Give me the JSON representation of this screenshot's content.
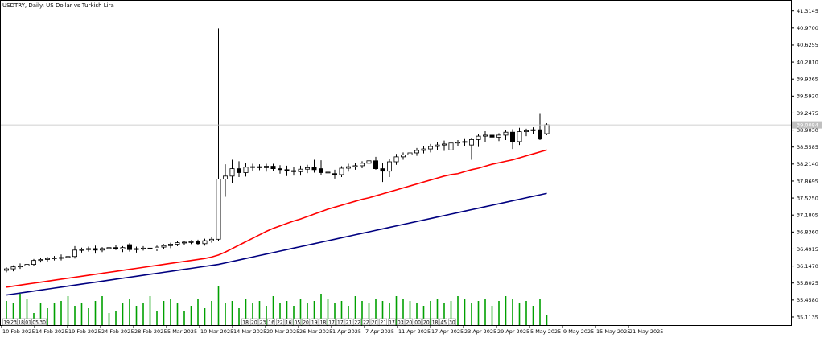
{
  "chart_data": {
    "type": "candlestick",
    "title": "USDTRY, Daily:  US Dollar vs Turkish Lira",
    "current_price": "39.0084",
    "y_ticks": [
      "41.3145",
      "40.9700",
      "40.6255",
      "40.2810",
      "39.9365",
      "39.5920",
      "39.2475",
      "38.9030",
      "38.5585",
      "38.2140",
      "37.8695",
      "37.5250",
      "37.1805",
      "36.8360",
      "36.4915",
      "36.1470",
      "35.8025",
      "35.4580",
      "35.1135"
    ],
    "ylim": [
      34.95,
      41.44
    ],
    "x_ticks": [
      "10 Feb 2025",
      "14 Feb 2025",
      "19 Feb 2025",
      "24 Feb 2025",
      "28 Feb 2025",
      "5 Mar 2025",
      "10 Mar 2025",
      "14 Mar 2025",
      "20 Mar 2025",
      "26 Mar 2025",
      "1 Apr 2025",
      "7 Apr 2025",
      "11 Apr 2025",
      "17 Apr 2025",
      "23 Apr 2025",
      "29 Apr 2025",
      "5 May 2025",
      "9 May 2025",
      "15 May 2025",
      "21 May 2025"
    ],
    "candles": [
      {
        "o": 36.06,
        "h": 36.12,
        "l": 36.02,
        "c": 36.09
      },
      {
        "o": 36.09,
        "h": 36.16,
        "l": 36.04,
        "c": 36.13
      },
      {
        "o": 36.13,
        "h": 36.2,
        "l": 36.09,
        "c": 36.15
      },
      {
        "o": 36.15,
        "h": 36.22,
        "l": 36.1,
        "c": 36.18
      },
      {
        "o": 36.18,
        "h": 36.29,
        "l": 36.14,
        "c": 36.26
      },
      {
        "o": 36.26,
        "h": 36.31,
        "l": 36.22,
        "c": 36.28
      },
      {
        "o": 36.28,
        "h": 36.33,
        "l": 36.24,
        "c": 36.3
      },
      {
        "o": 36.3,
        "h": 36.35,
        "l": 36.26,
        "c": 36.31
      },
      {
        "o": 36.31,
        "h": 36.38,
        "l": 36.26,
        "c": 36.32
      },
      {
        "o": 36.32,
        "h": 36.4,
        "l": 36.28,
        "c": 36.34
      },
      {
        "o": 36.34,
        "h": 36.55,
        "l": 36.3,
        "c": 36.47
      },
      {
        "o": 36.47,
        "h": 36.52,
        "l": 36.42,
        "c": 36.48
      },
      {
        "o": 36.48,
        "h": 36.54,
        "l": 36.44,
        "c": 36.5
      },
      {
        "o": 36.5,
        "h": 36.56,
        "l": 36.4,
        "c": 36.47
      },
      {
        "o": 36.47,
        "h": 36.53,
        "l": 36.43,
        "c": 36.5
      },
      {
        "o": 36.5,
        "h": 36.58,
        "l": 36.46,
        "c": 36.52
      },
      {
        "o": 36.52,
        "h": 36.57,
        "l": 36.47,
        "c": 36.49
      },
      {
        "o": 36.49,
        "h": 36.55,
        "l": 36.43,
        "c": 36.52
      },
      {
        "o": 36.58,
        "h": 36.61,
        "l": 36.44,
        "c": 36.48
      },
      {
        "o": 36.48,
        "h": 36.54,
        "l": 36.42,
        "c": 36.5
      },
      {
        "o": 36.5,
        "h": 36.55,
        "l": 36.46,
        "c": 36.51
      },
      {
        "o": 36.51,
        "h": 36.56,
        "l": 36.46,
        "c": 36.49
      },
      {
        "o": 36.49,
        "h": 36.56,
        "l": 36.45,
        "c": 36.53
      },
      {
        "o": 36.53,
        "h": 36.59,
        "l": 36.49,
        "c": 36.56
      },
      {
        "o": 36.56,
        "h": 36.62,
        "l": 36.51,
        "c": 36.59
      },
      {
        "o": 36.59,
        "h": 36.65,
        "l": 36.55,
        "c": 36.62
      },
      {
        "o": 36.62,
        "h": 36.66,
        "l": 36.57,
        "c": 36.63
      },
      {
        "o": 36.63,
        "h": 36.67,
        "l": 36.59,
        "c": 36.64
      },
      {
        "o": 36.64,
        "h": 36.68,
        "l": 36.58,
        "c": 36.6
      },
      {
        "o": 36.6,
        "h": 36.7,
        "l": 36.56,
        "c": 36.66
      },
      {
        "o": 36.66,
        "h": 36.74,
        "l": 36.62,
        "c": 36.69
      },
      {
        "o": 36.69,
        "h": 40.96,
        "l": 36.66,
        "c": 37.91
      },
      {
        "o": 37.91,
        "h": 38.21,
        "l": 37.55,
        "c": 37.97
      },
      {
        "o": 37.97,
        "h": 38.3,
        "l": 37.82,
        "c": 38.12
      },
      {
        "o": 38.12,
        "h": 38.27,
        "l": 37.95,
        "c": 38.04
      },
      {
        "o": 38.04,
        "h": 38.24,
        "l": 37.96,
        "c": 38.15
      },
      {
        "o": 38.15,
        "h": 38.22,
        "l": 38.08,
        "c": 38.16
      },
      {
        "o": 38.16,
        "h": 38.21,
        "l": 38.09,
        "c": 38.14
      },
      {
        "o": 38.14,
        "h": 38.22,
        "l": 38.06,
        "c": 38.17
      },
      {
        "o": 38.17,
        "h": 38.22,
        "l": 38.08,
        "c": 38.12
      },
      {
        "o": 38.12,
        "h": 38.19,
        "l": 38.02,
        "c": 38.1
      },
      {
        "o": 38.1,
        "h": 38.18,
        "l": 37.97,
        "c": 38.08
      },
      {
        "o": 38.08,
        "h": 38.16,
        "l": 37.98,
        "c": 38.06
      },
      {
        "o": 38.06,
        "h": 38.18,
        "l": 37.98,
        "c": 38.11
      },
      {
        "o": 38.11,
        "h": 38.2,
        "l": 38.03,
        "c": 38.14
      },
      {
        "o": 38.14,
        "h": 38.3,
        "l": 38.04,
        "c": 38.1
      },
      {
        "o": 38.12,
        "h": 38.29,
        "l": 38.0,
        "c": 38.04
      },
      {
        "o": 38.04,
        "h": 38.33,
        "l": 37.79,
        "c": 38.05
      },
      {
        "o": 38.02,
        "h": 38.1,
        "l": 37.92,
        "c": 38.0
      },
      {
        "o": 38.0,
        "h": 38.17,
        "l": 37.95,
        "c": 38.13
      },
      {
        "o": 38.13,
        "h": 38.22,
        "l": 38.06,
        "c": 38.16
      },
      {
        "o": 38.16,
        "h": 38.23,
        "l": 38.1,
        "c": 38.18
      },
      {
        "o": 38.18,
        "h": 38.27,
        "l": 38.13,
        "c": 38.23
      },
      {
        "o": 38.23,
        "h": 38.32,
        "l": 38.17,
        "c": 38.28
      },
      {
        "o": 38.28,
        "h": 38.36,
        "l": 38.1,
        "c": 38.12
      },
      {
        "o": 38.12,
        "h": 38.23,
        "l": 37.85,
        "c": 38.07
      },
      {
        "o": 38.07,
        "h": 38.32,
        "l": 37.95,
        "c": 38.26
      },
      {
        "o": 38.26,
        "h": 38.42,
        "l": 38.2,
        "c": 38.36
      },
      {
        "o": 38.36,
        "h": 38.45,
        "l": 38.3,
        "c": 38.4
      },
      {
        "o": 38.4,
        "h": 38.48,
        "l": 38.35,
        "c": 38.44
      },
      {
        "o": 38.44,
        "h": 38.54,
        "l": 38.38,
        "c": 38.49
      },
      {
        "o": 38.49,
        "h": 38.57,
        "l": 38.43,
        "c": 38.52
      },
      {
        "o": 38.52,
        "h": 38.62,
        "l": 38.45,
        "c": 38.57
      },
      {
        "o": 38.57,
        "h": 38.66,
        "l": 38.49,
        "c": 38.6
      },
      {
        "o": 38.6,
        "h": 38.69,
        "l": 38.48,
        "c": 38.62
      },
      {
        "o": 38.5,
        "h": 38.67,
        "l": 38.42,
        "c": 38.64
      },
      {
        "o": 38.64,
        "h": 38.7,
        "l": 38.57,
        "c": 38.66
      },
      {
        "o": 38.66,
        "h": 38.72,
        "l": 38.58,
        "c": 38.67
      },
      {
        "o": 38.6,
        "h": 38.74,
        "l": 38.3,
        "c": 38.71
      },
      {
        "o": 38.71,
        "h": 38.82,
        "l": 38.56,
        "c": 38.78
      },
      {
        "o": 38.78,
        "h": 38.88,
        "l": 38.66,
        "c": 38.8
      },
      {
        "o": 38.8,
        "h": 38.86,
        "l": 38.72,
        "c": 38.76
      },
      {
        "o": 38.76,
        "h": 38.84,
        "l": 38.68,
        "c": 38.8
      },
      {
        "o": 38.8,
        "h": 38.9,
        "l": 38.7,
        "c": 38.86
      },
      {
        "o": 38.86,
        "h": 38.92,
        "l": 38.52,
        "c": 38.67
      },
      {
        "o": 38.67,
        "h": 38.95,
        "l": 38.6,
        "c": 38.87
      },
      {
        "o": 38.87,
        "h": 38.93,
        "l": 38.78,
        "c": 38.89
      },
      {
        "o": 38.89,
        "h": 38.96,
        "l": 38.82,
        "c": 38.91
      },
      {
        "o": 38.91,
        "h": 39.23,
        "l": 38.7,
        "c": 38.72
      },
      {
        "o": 38.83,
        "h": 39.04,
        "l": 38.8,
        "c": 39.01
      }
    ],
    "series": [
      {
        "name": "",
        "values": [
          35.72,
          35.74,
          35.76,
          35.78,
          35.8,
          35.82,
          35.84,
          35.86,
          35.88,
          35.9,
          35.92,
          35.94,
          35.96,
          35.98,
          36.0,
          36.02,
          36.04,
          36.06,
          36.08,
          36.1,
          36.12,
          36.14,
          36.16,
          36.18,
          36.2,
          36.22,
          36.24,
          36.26,
          36.28,
          36.3,
          36.33,
          36.37,
          36.43,
          36.5,
          36.57,
          36.64,
          36.71,
          36.78,
          36.85,
          36.91,
          36.96,
          37.01,
          37.06,
          37.1,
          37.15,
          37.2,
          37.25,
          37.3,
          37.34,
          37.38,
          37.42,
          37.46,
          37.5,
          37.53,
          37.57,
          37.61,
          37.65,
          37.69,
          37.73,
          37.77,
          37.81,
          37.85,
          37.89,
          37.93,
          37.97,
          38.0,
          38.02,
          38.06,
          38.1,
          38.13,
          38.17,
          38.21,
          38.24,
          38.27,
          38.3,
          38.34,
          38.38,
          38.42,
          38.46,
          38.5
        ]
      },
      {
        "name": "",
        "values": [
          35.56,
          35.58,
          35.6,
          35.62,
          35.64,
          35.66,
          35.68,
          35.7,
          35.72,
          35.74,
          35.76,
          35.78,
          35.8,
          35.82,
          35.84,
          35.86,
          35.88,
          35.9,
          35.92,
          35.94,
          35.96,
          35.98,
          36.0,
          36.02,
          36.04,
          36.06,
          36.08,
          36.1,
          36.12,
          36.14,
          36.16,
          36.18,
          36.21,
          36.24,
          36.27,
          36.3,
          36.33,
          36.36,
          36.39,
          36.42,
          36.45,
          36.48,
          36.51,
          36.54,
          36.57,
          36.6,
          36.63,
          36.66,
          36.69,
          36.72,
          36.75,
          36.78,
          36.81,
          36.84,
          36.87,
          36.9,
          36.93,
          36.96,
          36.99,
          37.02,
          37.05,
          37.08,
          37.11,
          37.14,
          37.17,
          37.2,
          37.23,
          37.26,
          37.29,
          37.32,
          37.35,
          37.38,
          37.41,
          37.44,
          37.47,
          37.5,
          37.53,
          37.56,
          37.59,
          37.62
        ]
      }
    ],
    "volume": [
      10,
      9,
      13,
      11,
      5,
      9,
      7,
      9,
      10,
      12,
      8,
      9,
      7,
      10,
      12,
      5,
      6,
      9,
      11,
      8,
      9,
      12,
      6,
      10,
      11,
      9,
      6,
      8,
      11,
      7,
      10,
      16,
      9,
      10,
      7,
      11,
      9,
      10,
      8,
      12,
      9,
      10,
      8,
      11,
      9,
      10,
      13,
      11,
      9,
      10,
      8,
      12,
      10,
      9,
      11,
      10,
      9,
      12,
      11,
      10,
      9,
      8,
      10,
      11,
      9,
      10,
      12,
      11,
      9,
      10,
      11,
      8,
      10,
      12,
      11,
      9,
      10,
      8,
      11,
      4
    ],
    "volume_tags": [
      "19",
      "23",
      "18",
      "01",
      "05",
      "30",
      "18",
      "20",
      "23",
      "16",
      "22",
      "16",
      "05",
      "20",
      "19",
      "18",
      "17",
      "17",
      "21",
      "22",
      "22",
      "20",
      "21",
      "17",
      "03",
      "20",
      "00",
      "20",
      "18",
      "45",
      "30"
    ]
  }
}
